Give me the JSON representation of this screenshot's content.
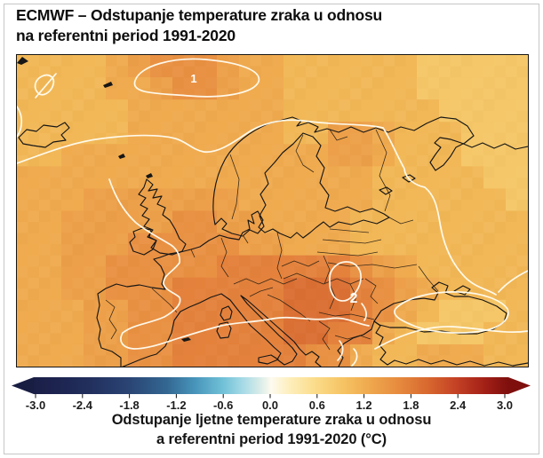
{
  "header": {
    "line1": "ECMWF – Odstupanje temperature zraka u odnosu",
    "line2": "na referentni period 1991-2020"
  },
  "map": {
    "contour_labels": [
      {
        "text": "1"
      },
      {
        "text": "2"
      }
    ],
    "palette": {
      "A": "#f5c768",
      "B": "#f2b857",
      "C": "#f0ab4f",
      "D": "#eda049",
      "E": "#e99143",
      "F": "#e4823c",
      "G": "#db7034"
    },
    "grid_rows": [
      "BBBBCDEEEDCCBBBBBBAAAAA",
      "BBBBCCDEEDCCBBBBBBAAAAA",
      "BBBBBCCCCCCCBBBBBBBAAAA",
      "BBBBBCCCCCCCBBDDCBBBAAA",
      "BBCCCCCCCCCCCCDDCBBBAAA",
      "CCCCCCCCCCCCCCCCBBBBBAA",
      "CCCDDDDDDDCCCCCCBBBBBBA",
      "CCDDDDDEEDDCCCCBBBBBBBB",
      "CCDDDEEEEEDDCCCBBBBBBBB",
      "CCDDEEEEEFFFFFFEDCBBBBB",
      "CCDDEEEFFFFFGGGFEDCBBBB",
      "CCCDDEEFFFFFGGGFECBAAAB",
      "CCCDDEEFFFFFGGFFCBAAABB",
      "CCCDDEEFFFFFFEECBBCCCBB"
    ]
  },
  "colorbar": {
    "ticks": [
      "-3.0",
      "-2.4",
      "-1.8",
      "-1.2",
      "-0.6",
      "0.0",
      "0.6",
      "1.2",
      "1.8",
      "2.4",
      "3.0"
    ],
    "scale": {
      "min": -3.0,
      "max": 3.0,
      "step": 0.6,
      "unit": "°C"
    },
    "gradient_stops": [
      [
        "0",
        "#1a1f47"
      ],
      [
        "0.05",
        "#1d2450"
      ],
      [
        "0.12",
        "#22305e"
      ],
      [
        "0.2",
        "#2a4474"
      ],
      [
        "0.28",
        "#336792"
      ],
      [
        "0.34",
        "#4895bb"
      ],
      [
        "0.4",
        "#72c2d8"
      ],
      [
        "0.44",
        "#a5dae6"
      ],
      [
        "0.48",
        "#ddeee9"
      ],
      [
        "0.5",
        "#fdfaef"
      ],
      [
        "0.54",
        "#fdeebb"
      ],
      [
        "0.59",
        "#fbdd8c"
      ],
      [
        "0.65",
        "#f6c464"
      ],
      [
        "0.71",
        "#efa74d"
      ],
      [
        "0.77",
        "#e68a3e"
      ],
      [
        "0.83",
        "#d8682f"
      ],
      [
        "0.89",
        "#c44125"
      ],
      [
        "0.95",
        "#a32017"
      ],
      [
        "1",
        "#7e0f0d"
      ]
    ],
    "arrow_left_color": "#181d42",
    "arrow_right_color": "#7e0f0d"
  },
  "caption": {
    "line1": "Odstupanje ljetne temperature zraka u odnosu",
    "line2": "a referentni period 1991-2020 (°C)"
  }
}
